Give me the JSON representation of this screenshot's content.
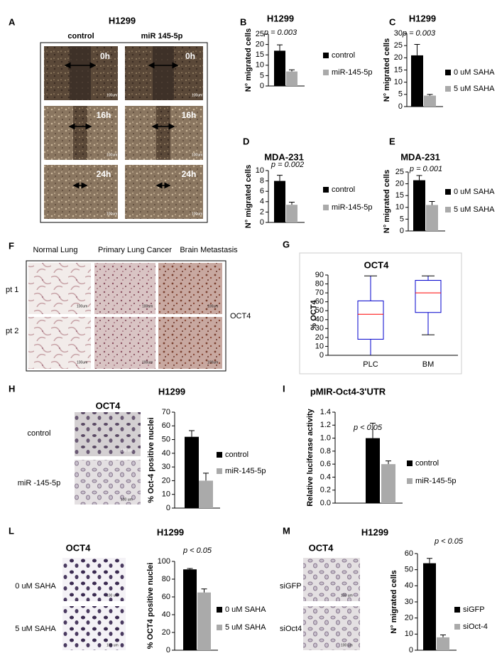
{
  "figure": {
    "A": {
      "panel": "A",
      "title": "H1299",
      "columns": [
        "control",
        "miR 145-5p"
      ],
      "rows": [
        "0h",
        "16h",
        "24h"
      ],
      "scale": "100um"
    },
    "F": {
      "panel": "F",
      "columns": [
        "Normal Lung",
        "Primary Lung Cancer",
        "Brain Metastasis"
      ],
      "rows": [
        "pt 1",
        "pt 2"
      ],
      "stain": "OCT4",
      "scale": "100um"
    },
    "H": {
      "stain": "OCT4",
      "rows": [
        "control",
        "miR -145-5p"
      ],
      "scale": "100 um"
    },
    "L": {
      "stain": "OCT4",
      "rows": [
        "0 uM SAHA",
        "5 uM SAHA"
      ],
      "scale": "100 um"
    },
    "M": {
      "stain": "OCT4",
      "rows": [
        "siGFP",
        "siOct4"
      ],
      "scale": "100 um"
    }
  },
  "chart_data": [
    {
      "type": "bar",
      "panel": "B",
      "title": "H1299",
      "ylabel": "N° migrated cells",
      "annotation": "p = 0.003",
      "ylim": [
        0,
        25
      ],
      "yticks": [
        0,
        5,
        10,
        15,
        20,
        25
      ],
      "series": [
        {
          "name": "control",
          "color": "#000000",
          "values": [
            17
          ],
          "errors": [
            2.8
          ]
        },
        {
          "name": "miR-145-5p",
          "color": "#aaaaaa",
          "values": [
            7
          ],
          "errors": [
            0.8
          ]
        }
      ]
    },
    {
      "type": "bar",
      "panel": "C",
      "title": "H1299",
      "ylabel": "N° migrated cells",
      "annotation": "p = 0.003",
      "ylim": [
        0,
        30
      ],
      "yticks": [
        0,
        5,
        10,
        15,
        20,
        25,
        30
      ],
      "series": [
        {
          "name": "0 uM SAHA",
          "color": "#000000",
          "values": [
            21
          ],
          "errors": [
            4.5
          ]
        },
        {
          "name": "5 uM SAHA",
          "color": "#aaaaaa",
          "values": [
            4.5
          ],
          "errors": [
            0.5
          ]
        }
      ]
    },
    {
      "type": "bar",
      "panel": "D",
      "title": "MDA-231",
      "ylabel": "N° migrated cells",
      "annotation": "p = 0.002",
      "ylim": [
        0,
        10
      ],
      "yticks": [
        0,
        2,
        4,
        6,
        8,
        10
      ],
      "series": [
        {
          "name": "control",
          "color": "#000000",
          "values": [
            8
          ],
          "errors": [
            1.1
          ]
        },
        {
          "name": "miR-145-5p",
          "color": "#aaaaaa",
          "values": [
            3.4
          ],
          "errors": [
            0.5
          ]
        }
      ]
    },
    {
      "type": "bar",
      "panel": "E",
      "title": "MDA-231",
      "ylabel": "N° migrated cells",
      "annotation": "p = 0.001",
      "ylim": [
        0,
        25
      ],
      "yticks": [
        0,
        5,
        10,
        15,
        20,
        25
      ],
      "series": [
        {
          "name": "0 uM SAHA",
          "color": "#000000",
          "values": [
            21.5
          ],
          "errors": [
            2
          ]
        },
        {
          "name": "5 uM SAHA",
          "color": "#aaaaaa",
          "values": [
            11
          ],
          "errors": [
            1.5
          ]
        }
      ]
    },
    {
      "type": "box",
      "panel": "G",
      "title": "OCT4",
      "ylabel": "% OCT4",
      "ylim": [
        0,
        90
      ],
      "yticks": [
        0,
        10,
        20,
        30,
        40,
        50,
        60,
        70,
        80,
        90
      ],
      "categories": [
        "PLC",
        "BM"
      ],
      "box_color": "#0000cc",
      "median_color": "#ff0000",
      "boxes": [
        {
          "min": 0,
          "q1": 18,
          "median": 46,
          "q3": 61,
          "max": 89
        },
        {
          "min": 23,
          "q1": 48,
          "median": 70,
          "q3": 84,
          "max": 89
        }
      ]
    },
    {
      "type": "bar",
      "panel": "H",
      "title": "H1299",
      "ylabel": "% Oct-4 positive nuclei",
      "ylim": [
        0,
        70
      ],
      "yticks": [
        0,
        10,
        20,
        30,
        40,
        50,
        60,
        70
      ],
      "series": [
        {
          "name": "control",
          "color": "#000000",
          "values": [
            52
          ],
          "errors": [
            4.5
          ]
        },
        {
          "name": "miR-145-5p",
          "color": "#aaaaaa",
          "values": [
            20
          ],
          "errors": [
            5.5
          ]
        }
      ]
    },
    {
      "type": "bar",
      "panel": "I",
      "title": "pMIR-Oct4-3'UTR",
      "ylabel": "Relative luciferase activity",
      "annotation": "p < 0.05",
      "ylim": [
        0,
        1.4
      ],
      "yticks": [
        {
          "value": 0,
          "label": "0.0"
        },
        0.2,
        0.4,
        0.6,
        0.8,
        {
          "value": 1,
          "label": "1.0"
        },
        1.2,
        1.4
      ],
      "series": [
        {
          "name": "control",
          "color": "#000000",
          "values": [
            1.0
          ],
          "errors": [
            0.23
          ]
        },
        {
          "name": "miR-145-5p",
          "color": "#aaaaaa",
          "values": [
            0.6
          ],
          "errors": [
            0.05
          ]
        }
      ]
    },
    {
      "type": "bar",
      "panel": "L",
      "title": "H1299",
      "ylabel": "% OCT4 positive nuclei",
      "annotation": "p < 0.05",
      "ylim": [
        0,
        100
      ],
      "yticks": [
        0,
        20,
        40,
        60,
        80,
        100
      ],
      "series": [
        {
          "name": "0 uM SAHA",
          "color": "#000000",
          "values": [
            91
          ],
          "errors": [
            1
          ]
        },
        {
          "name": "5 uM SAHA",
          "color": "#aaaaaa",
          "values": [
            65
          ],
          "errors": [
            4
          ]
        }
      ]
    },
    {
      "type": "bar",
      "panel": "M",
      "title": "H1299",
      "ylabel": "N° migrated cells",
      "annotation": "p < 0.05",
      "ylim": [
        0,
        60
      ],
      "yticks": [
        0,
        10,
        20,
        30,
        40,
        50,
        60
      ],
      "series": [
        {
          "name": "siGFP",
          "color": "#000000",
          "values": [
            54
          ],
          "errors": [
            3
          ]
        },
        {
          "name": "siOct-4",
          "color": "#aaaaaa",
          "values": [
            8
          ],
          "errors": [
            1.5
          ]
        }
      ]
    }
  ]
}
